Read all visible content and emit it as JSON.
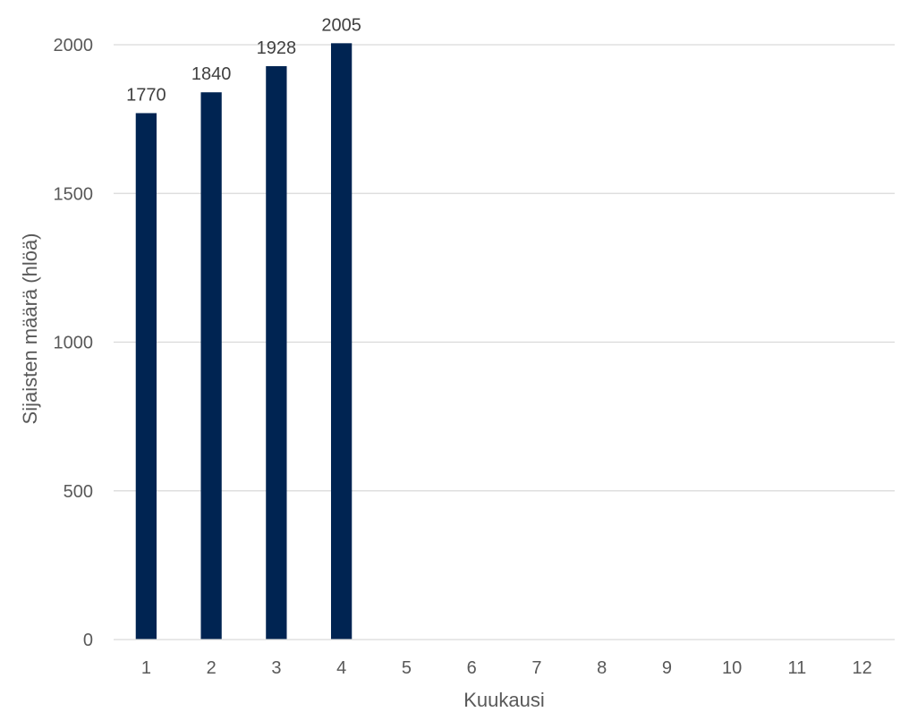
{
  "chart_data": {
    "type": "bar",
    "categories": [
      "1",
      "2",
      "3",
      "4",
      "5",
      "6",
      "7",
      "8",
      "9",
      "10",
      "11",
      "12"
    ],
    "series": [
      {
        "values": [
          1770,
          1840,
          1928,
          2005,
          null,
          null,
          null,
          null,
          null,
          null,
          null,
          null
        ],
        "color": "#002452"
      }
    ],
    "data_labels": [
      "1770",
      "1840",
      "1928",
      "2005",
      "",
      "",
      "",
      "",
      "",
      "",
      "",
      ""
    ],
    "title": "",
    "xlabel": "Kuukausi",
    "ylabel": "Sijaisten määrä (hlöä)",
    "ylim": [
      0,
      2000
    ],
    "yticks": [
      0,
      500,
      1000,
      1500,
      2000
    ],
    "ytick_labels": [
      "0",
      "500",
      "1000",
      "1500",
      "2000"
    ],
    "grid": true,
    "legend": "none"
  }
}
